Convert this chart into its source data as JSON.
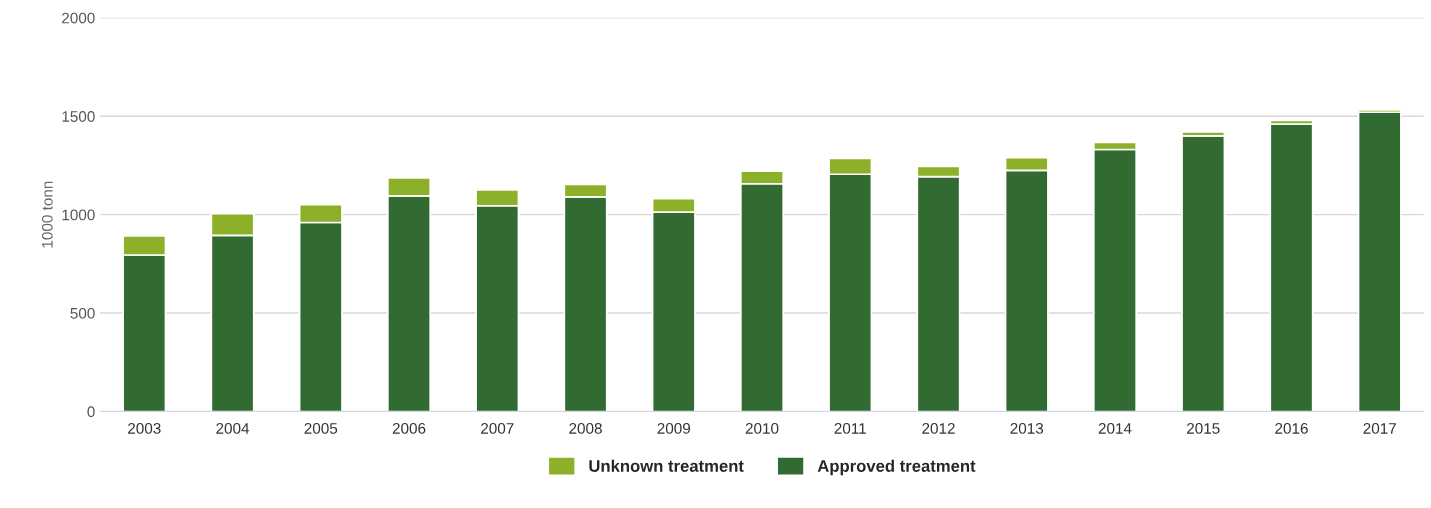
{
  "chart_data": {
    "type": "bar",
    "ylabel": "1000 tonn",
    "stacked": true,
    "categories": [
      "2003",
      "2004",
      "2005",
      "2006",
      "2007",
      "2008",
      "2009",
      "2010",
      "2011",
      "2012",
      "2013",
      "2014",
      "2015",
      "2016",
      "2017"
    ],
    "series": [
      {
        "name": "Approved treatment",
        "color": "#316b31",
        "values": [
          795,
          895,
          960,
          1095,
          1045,
          1090,
          1013,
          1157,
          1205,
          1193,
          1225,
          1331,
          1400,
          1460,
          1520
        ]
      },
      {
        "name": "Unknown treatment",
        "color": "#8db029",
        "values": [
          97,
          110,
          90,
          92,
          80,
          63,
          68,
          64,
          80,
          52,
          65,
          36,
          20,
          18,
          12
        ]
      }
    ],
    "ylim": [
      0,
      2000
    ],
    "yticks": [
      0,
      500,
      1000,
      1500,
      2000
    ],
    "grid": "y",
    "legend": "bottom"
  }
}
